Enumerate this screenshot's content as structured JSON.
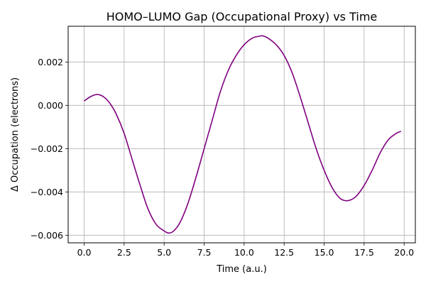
{
  "chart_data": {
    "type": "line",
    "title": "HOMO–LUMO Gap (Occupational Proxy) vs Time",
    "xlabel": "Time (a.u.)",
    "ylabel": "Δ Occupation (electrons)",
    "xlim": [
      -1.0,
      20.7
    ],
    "ylim": [
      -0.00635,
      0.00365
    ],
    "xticks": [
      0.0,
      2.5,
      5.0,
      7.5,
      10.0,
      12.5,
      15.0,
      17.5,
      20.0
    ],
    "xtick_labels": [
      "0.0",
      "2.5",
      "5.0",
      "7.5",
      "10.0",
      "12.5",
      "15.0",
      "17.5",
      "20.0"
    ],
    "yticks": [
      -0.006,
      -0.004,
      -0.002,
      0.0,
      0.002
    ],
    "ytick_labels": [
      "−0.006",
      "−0.004",
      "−0.002",
      "0.000",
      "0.002"
    ],
    "grid": true,
    "series": [
      {
        "color": "#800080",
        "x": [
          0.0,
          0.4,
          0.8,
          1.2,
          1.6,
          2.0,
          2.5,
          3.0,
          3.5,
          4.0,
          4.5,
          5.0,
          5.3,
          5.6,
          6.0,
          6.5,
          7.0,
          7.5,
          8.0,
          8.5,
          9.0,
          9.5,
          10.0,
          10.5,
          11.0,
          11.2,
          11.5,
          12.0,
          12.5,
          13.0,
          13.5,
          14.0,
          14.5,
          15.0,
          15.5,
          16.0,
          16.5,
          17.0,
          17.5,
          18.0,
          18.5,
          19.0,
          19.5,
          19.8
        ],
        "y": [
          0.0002,
          0.0004,
          0.0005,
          0.0004,
          0.0001,
          -0.0004,
          -0.0013,
          -0.0025,
          -0.0037,
          -0.0048,
          -0.0055,
          -0.0058,
          -0.0059,
          -0.0058,
          -0.0054,
          -0.0045,
          -0.0033,
          -0.002,
          -0.0007,
          0.0006,
          0.0016,
          0.0023,
          0.0028,
          0.0031,
          0.0032,
          0.0032,
          0.0031,
          0.0028,
          0.0023,
          0.0015,
          0.0004,
          -0.0008,
          -0.002,
          -0.003,
          -0.0038,
          -0.0043,
          -0.0044,
          -0.0042,
          -0.0037,
          -0.003,
          -0.0022,
          -0.0016,
          -0.0013,
          -0.0012
        ]
      }
    ]
  }
}
